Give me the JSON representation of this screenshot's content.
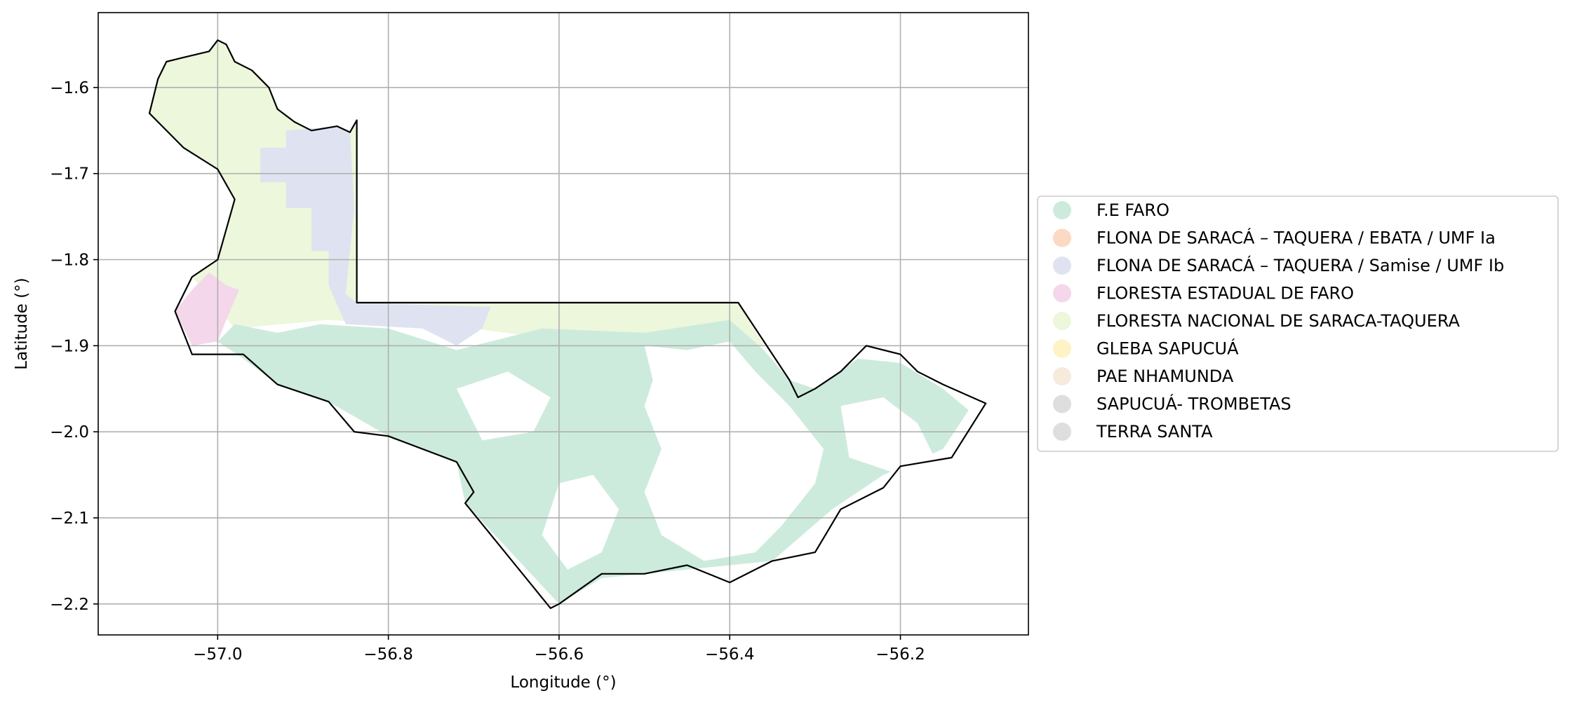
{
  "chart_data": {
    "type": "map",
    "xlabel": "Longitude (°)",
    "ylabel": "Latitude (°)",
    "xlim": [
      -57.14,
      -56.05
    ],
    "ylim": [
      -2.236,
      -1.513
    ],
    "grid": true,
    "x_ticks": [
      -57.0,
      -56.8,
      -56.6,
      -56.4,
      -56.2
    ],
    "x_tick_labels": [
      "−57.0",
      "−56.8",
      "−56.6",
      "−56.4",
      "−56.2"
    ],
    "y_ticks": [
      -1.6,
      -1.7,
      -1.8,
      -1.9,
      -2.0,
      -2.1,
      -2.2
    ],
    "y_tick_labels": [
      "−1.6",
      "−1.7",
      "−1.8",
      "−1.9",
      "−2.0",
      "−2.1",
      "−2.2"
    ],
    "legend_position": "right",
    "legend": [
      {
        "label": "F.E FARO",
        "color": "#cdebdc"
      },
      {
        "label": "FLONA DE SARACÁ – TAQUERA / EBATA / UMF Ia",
        "color": "#fbd9c2"
      },
      {
        "label": "FLONA DE SARACÁ – TAQUERA / Samise / UMF Ib",
        "color": "#dfe3f1"
      },
      {
        "label": "FLORESTA ESTADUAL DE FARO",
        "color": "#f4d7ea"
      },
      {
        "label": "FLORESTA NACIONAL DE SARACA-TAQUERA",
        "color": "#ecf7dc"
      },
      {
        "label": "GLEBA SAPUCUÁ",
        "color": "#fdf3c4"
      },
      {
        "label": "PAE NHAMUNDA",
        "color": "#f5eadc"
      },
      {
        "label": "SAPUCUÁ- TROMBETAS",
        "color": "#dedede"
      },
      {
        "label": "TERRA SANTA",
        "color": "#dedede"
      }
    ],
    "boundary": [
      [
        -57.07,
        -1.59
      ],
      [
        -57.06,
        -1.57
      ],
      [
        -57.04,
        -1.565
      ],
      [
        -57.01,
        -1.558
      ],
      [
        -57.0,
        -1.545
      ],
      [
        -56.99,
        -1.55
      ],
      [
        -56.98,
        -1.57
      ],
      [
        -56.96,
        -1.58
      ],
      [
        -56.94,
        -1.6
      ],
      [
        -56.93,
        -1.625
      ],
      [
        -56.91,
        -1.64
      ],
      [
        -56.89,
        -1.65
      ],
      [
        -56.86,
        -1.645
      ],
      [
        -56.845,
        -1.652
      ],
      [
        -56.837,
        -1.638
      ],
      [
        -56.837,
        -1.85
      ],
      [
        -56.39,
        -1.85
      ],
      [
        -56.33,
        -1.94
      ],
      [
        -56.32,
        -1.96
      ],
      [
        -56.3,
        -1.95
      ],
      [
        -56.27,
        -1.93
      ],
      [
        -56.24,
        -1.9
      ],
      [
        -56.2,
        -1.91
      ],
      [
        -56.18,
        -1.93
      ],
      [
        -56.15,
        -1.945
      ],
      [
        -56.1,
        -1.967
      ],
      [
        -56.14,
        -2.03
      ],
      [
        -56.2,
        -2.04
      ],
      [
        -56.22,
        -2.065
      ],
      [
        -56.27,
        -2.09
      ],
      [
        -56.3,
        -2.14
      ],
      [
        -56.35,
        -2.15
      ],
      [
        -56.4,
        -2.175
      ],
      [
        -56.45,
        -2.155
      ],
      [
        -56.5,
        -2.165
      ],
      [
        -56.55,
        -2.165
      ],
      [
        -56.6,
        -2.2
      ],
      [
        -56.61,
        -2.205
      ],
      [
        -56.71,
        -2.083
      ],
      [
        -56.7,
        -2.07
      ],
      [
        -56.72,
        -2.035
      ],
      [
        -56.8,
        -2.005
      ],
      [
        -56.84,
        -2.0
      ],
      [
        -56.87,
        -1.965
      ],
      [
        -56.93,
        -1.945
      ],
      [
        -56.97,
        -1.91
      ],
      [
        -57.03,
        -1.91
      ],
      [
        -57.05,
        -1.86
      ],
      [
        -57.03,
        -1.82
      ],
      [
        -57.0,
        -1.8
      ],
      [
        -56.98,
        -1.73
      ],
      [
        -57.0,
        -1.695
      ],
      [
        -57.04,
        -1.67
      ],
      [
        -57.08,
        -1.63
      ],
      [
        -57.07,
        -1.59
      ]
    ],
    "regions": [
      {
        "name": "FLORESTA NACIONAL DE SARACA-TAQUERA",
        "color": "#ecf7dc",
        "coords": [
          [
            -57.07,
            -1.59
          ],
          [
            -57.06,
            -1.57
          ],
          [
            -57.04,
            -1.565
          ],
          [
            -57.01,
            -1.558
          ],
          [
            -57.0,
            -1.545
          ],
          [
            -56.99,
            -1.55
          ],
          [
            -56.98,
            -1.57
          ],
          [
            -56.96,
            -1.58
          ],
          [
            -56.94,
            -1.6
          ],
          [
            -56.93,
            -1.625
          ],
          [
            -56.91,
            -1.64
          ],
          [
            -56.89,
            -1.65
          ],
          [
            -56.86,
            -1.645
          ],
          [
            -56.845,
            -1.652
          ],
          [
            -56.837,
            -1.638
          ],
          [
            -56.837,
            -1.85
          ],
          [
            -56.39,
            -1.85
          ],
          [
            -56.36,
            -1.9
          ],
          [
            -56.55,
            -1.9
          ],
          [
            -56.7,
            -1.88
          ],
          [
            -56.87,
            -1.87
          ],
          [
            -56.98,
            -1.88
          ],
          [
            -57.03,
            -1.82
          ],
          [
            -57.0,
            -1.8
          ],
          [
            -56.98,
            -1.73
          ],
          [
            -57.0,
            -1.695
          ],
          [
            -57.04,
            -1.67
          ],
          [
            -57.08,
            -1.63
          ]
        ]
      },
      {
        "name": "FLONA DE SARACÁ – TAQUERA / Samise / UMF Ib",
        "color": "#dfe3f1",
        "coords": [
          [
            -56.92,
            -1.65
          ],
          [
            -56.86,
            -1.645
          ],
          [
            -56.845,
            -1.652
          ],
          [
            -56.84,
            -1.74
          ],
          [
            -56.85,
            -1.84
          ],
          [
            -56.837,
            -1.85
          ],
          [
            -56.68,
            -1.855
          ],
          [
            -56.69,
            -1.88
          ],
          [
            -56.72,
            -1.9
          ],
          [
            -56.76,
            -1.88
          ],
          [
            -56.85,
            -1.875
          ],
          [
            -56.87,
            -1.83
          ],
          [
            -56.87,
            -1.79
          ],
          [
            -56.89,
            -1.79
          ],
          [
            -56.89,
            -1.74
          ],
          [
            -56.92,
            -1.74
          ],
          [
            -56.92,
            -1.71
          ],
          [
            -56.95,
            -1.71
          ],
          [
            -56.95,
            -1.67
          ],
          [
            -56.92,
            -1.67
          ]
        ]
      },
      {
        "name": "FLORESTA ESTADUAL DE FARO",
        "color": "#f4d7ea",
        "coords": [
          [
            -57.05,
            -1.86
          ],
          [
            -57.03,
            -1.835
          ],
          [
            -57.01,
            -1.815
          ],
          [
            -56.99,
            -1.83
          ],
          [
            -56.975,
            -1.835
          ],
          [
            -56.99,
            -1.87
          ],
          [
            -57.0,
            -1.895
          ],
          [
            -57.03,
            -1.9
          ]
        ]
      },
      {
        "name": "F.E FARO",
        "color": "#cdebdc",
        "coords": [
          [
            -57.0,
            -1.895
          ],
          [
            -56.98,
            -1.875
          ],
          [
            -56.93,
            -1.885
          ],
          [
            -56.88,
            -1.875
          ],
          [
            -56.8,
            -1.88
          ],
          [
            -56.72,
            -1.905
          ],
          [
            -56.62,
            -1.88
          ],
          [
            -56.5,
            -1.885
          ],
          [
            -56.4,
            -1.87
          ],
          [
            -56.36,
            -1.905
          ],
          [
            -56.33,
            -1.94
          ],
          [
            -56.3,
            -1.95
          ],
          [
            -56.25,
            -1.915
          ],
          [
            -56.2,
            -1.92
          ],
          [
            -56.15,
            -1.95
          ],
          [
            -56.12,
            -1.975
          ],
          [
            -56.15,
            -2.02
          ],
          [
            -56.22,
            -2.05
          ],
          [
            -56.28,
            -2.09
          ],
          [
            -56.35,
            -2.15
          ],
          [
            -56.45,
            -2.16
          ],
          [
            -56.55,
            -2.17
          ],
          [
            -56.6,
            -2.2
          ],
          [
            -56.71,
            -2.083
          ],
          [
            -56.72,
            -2.035
          ],
          [
            -56.8,
            -2.005
          ],
          [
            -56.87,
            -1.965
          ],
          [
            -56.93,
            -1.945
          ],
          [
            -56.97,
            -1.915
          ]
        ]
      }
    ],
    "clearings": [
      {
        "name": "east-clearing",
        "color": "#ffffff",
        "coords": [
          [
            -56.5,
            -1.9
          ],
          [
            -56.45,
            -1.905
          ],
          [
            -56.4,
            -1.895
          ],
          [
            -56.37,
            -1.93
          ],
          [
            -56.33,
            -1.97
          ],
          [
            -56.29,
            -2.02
          ],
          [
            -56.3,
            -2.06
          ],
          [
            -56.34,
            -2.11
          ],
          [
            -56.37,
            -2.14
          ],
          [
            -56.43,
            -2.15
          ],
          [
            -56.48,
            -2.12
          ],
          [
            -56.5,
            -2.07
          ],
          [
            -56.48,
            -2.02
          ],
          [
            -56.5,
            -1.97
          ],
          [
            -56.49,
            -1.94
          ]
        ]
      },
      {
        "name": "southeast-clearing",
        "color": "#ffffff",
        "coords": [
          [
            -56.27,
            -1.97
          ],
          [
            -56.22,
            -1.96
          ],
          [
            -56.18,
            -1.99
          ],
          [
            -56.16,
            -2.03
          ],
          [
            -56.2,
            -2.05
          ],
          [
            -56.26,
            -2.03
          ]
        ]
      },
      {
        "name": "south-clearing",
        "color": "#ffffff",
        "coords": [
          [
            -56.6,
            -2.06
          ],
          [
            -56.56,
            -2.05
          ],
          [
            -56.53,
            -2.09
          ],
          [
            -56.55,
            -2.14
          ],
          [
            -56.59,
            -2.16
          ],
          [
            -56.62,
            -2.12
          ]
        ]
      },
      {
        "name": "mid-clearing",
        "color": "#ffffff",
        "coords": [
          [
            -56.72,
            -1.95
          ],
          [
            -56.66,
            -1.93
          ],
          [
            -56.61,
            -1.96
          ],
          [
            -56.63,
            -2.0
          ],
          [
            -56.69,
            -2.01
          ]
        ]
      }
    ]
  }
}
